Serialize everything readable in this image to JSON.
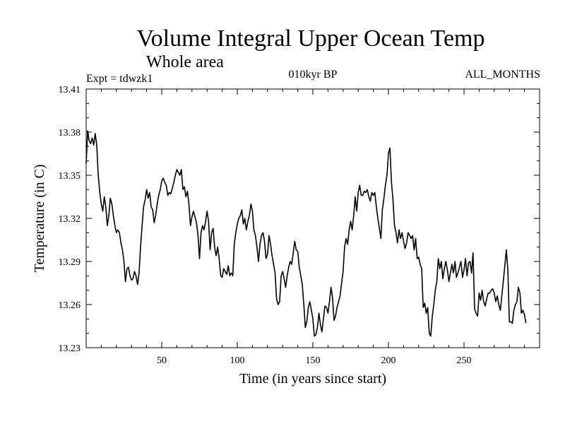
{
  "chart_data": {
    "type": "line",
    "title": "Volume Integral Upper Ocean Temp",
    "subtitle": "Whole area",
    "annotation_left": "Expt = tdwzk1",
    "annotation_center": "010kyr BP",
    "annotation_right": "ALL_MONTHS",
    "xlabel": "Time (in years since start)",
    "ylabel": "Temperature (in C)",
    "xlim": [
      0,
      300
    ],
    "ylim": [
      13.23,
      13.41
    ],
    "x_ticks": [
      50,
      100,
      150,
      200,
      250
    ],
    "x_tick_labels": [
      "50",
      "100",
      "150",
      "200",
      "250"
    ],
    "y_ticks": [
      13.23,
      13.26,
      13.29,
      13.32,
      13.35,
      13.38,
      13.41
    ],
    "y_tick_labels": [
      "13.23",
      "13.26",
      "13.29",
      "13.32",
      "13.35",
      "13.38",
      "13.41"
    ],
    "line_color": "#000000",
    "series": [
      {
        "name": "Temperature",
        "points": [
          [
            0,
            13.358
          ],
          [
            1,
            13.381
          ],
          [
            2,
            13.374
          ],
          [
            3,
            13.372
          ],
          [
            4,
            13.376
          ],
          [
            5,
            13.371
          ],
          [
            6,
            13.379
          ],
          [
            7,
            13.371
          ],
          [
            8,
            13.35
          ],
          [
            9,
            13.338
          ],
          [
            10,
            13.33
          ],
          [
            11,
            13.325
          ],
          [
            12,
            13.335
          ],
          [
            13,
            13.328
          ],
          [
            14,
            13.315
          ],
          [
            15,
            13.322
          ],
          [
            16,
            13.334
          ],
          [
            17,
            13.33
          ],
          [
            18,
            13.322
          ],
          [
            19,
            13.315
          ],
          [
            20,
            13.31
          ],
          [
            21,
            13.312
          ],
          [
            22,
            13.31
          ],
          [
            23,
            13.303
          ],
          [
            24,
            13.298
          ],
          [
            25,
            13.29
          ],
          [
            26,
            13.276
          ],
          [
            27,
            13.285
          ],
          [
            28,
            13.286
          ],
          [
            29,
            13.28
          ],
          [
            30,
            13.277
          ],
          [
            31,
            13.278
          ],
          [
            32,
            13.283
          ],
          [
            33,
            13.28
          ],
          [
            34,
            13.274
          ],
          [
            35,
            13.282
          ],
          [
            36,
            13.3
          ],
          [
            37,
            13.315
          ],
          [
            38,
            13.328
          ],
          [
            39,
            13.333
          ],
          [
            40,
            13.34
          ],
          [
            41,
            13.334
          ],
          [
            42,
            13.338
          ],
          [
            43,
            13.328
          ],
          [
            44,
            13.326
          ],
          [
            45,
            13.317
          ],
          [
            46,
            13.322
          ],
          [
            47,
            13.33
          ],
          [
            48,
            13.336
          ],
          [
            49,
            13.34
          ],
          [
            50,
            13.346
          ],
          [
            51,
            13.348
          ],
          [
            52,
            13.345
          ],
          [
            53,
            13.343
          ],
          [
            54,
            13.336
          ],
          [
            55,
            13.338
          ],
          [
            56,
            13.337
          ],
          [
            57,
            13.341
          ],
          [
            58,
            13.345
          ],
          [
            59,
            13.35
          ],
          [
            60,
            13.354
          ],
          [
            61,
            13.352
          ],
          [
            62,
            13.35
          ],
          [
            63,
            13.354
          ],
          [
            64,
            13.34
          ],
          [
            65,
            13.342
          ],
          [
            66,
            13.335
          ],
          [
            67,
            13.339
          ],
          [
            68,
            13.33
          ],
          [
            69,
            13.315
          ],
          [
            70,
            13.321
          ],
          [
            71,
            13.325
          ],
          [
            72,
            13.321
          ],
          [
            73,
            13.317
          ],
          [
            74,
            13.308
          ],
          [
            75,
            13.292
          ],
          [
            76,
            13.31
          ],
          [
            77,
            13.315
          ],
          [
            78,
            13.312
          ],
          [
            79,
            13.318
          ],
          [
            80,
            13.325
          ],
          [
            81,
            13.318
          ],
          [
            82,
            13.298
          ],
          [
            83,
            13.31
          ],
          [
            84,
            13.313
          ],
          [
            85,
            13.3
          ],
          [
            86,
            13.294
          ],
          [
            87,
            13.3
          ],
          [
            88,
            13.292
          ],
          [
            89,
            13.28
          ],
          [
            90,
            13.279
          ],
          [
            91,
            13.285
          ],
          [
            92,
            13.283
          ],
          [
            93,
            13.281
          ],
          [
            94,
            13.287
          ],
          [
            95,
            13.28
          ],
          [
            96,
            13.282
          ],
          [
            97,
            13.28
          ],
          [
            98,
            13.302
          ],
          [
            99,
            13.31
          ],
          [
            100,
            13.316
          ],
          [
            101,
            13.32
          ],
          [
            102,
            13.322
          ],
          [
            103,
            13.326
          ],
          [
            104,
            13.316
          ],
          [
            105,
            13.32
          ],
          [
            106,
            13.312
          ],
          [
            107,
            13.318
          ],
          [
            108,
            13.322
          ],
          [
            109,
            13.33
          ],
          [
            110,
            13.325
          ],
          [
            111,
            13.312
          ],
          [
            112,
            13.308
          ],
          [
            113,
            13.3
          ],
          [
            114,
            13.29
          ],
          [
            115,
            13.302
          ],
          [
            116,
            13.308
          ],
          [
            117,
            13.31
          ],
          [
            118,
            13.304
          ],
          [
            119,
            13.292
          ],
          [
            120,
            13.295
          ],
          [
            121,
            13.308
          ],
          [
            122,
            13.302
          ],
          [
            123,
            13.294
          ],
          [
            124,
            13.288
          ],
          [
            125,
            13.282
          ],
          [
            126,
            13.264
          ],
          [
            127,
            13.26
          ],
          [
            128,
            13.262
          ],
          [
            129,
            13.28
          ],
          [
            130,
            13.283
          ],
          [
            131,
            13.278
          ],
          [
            132,
            13.272
          ],
          [
            133,
            13.28
          ],
          [
            134,
            13.286
          ],
          [
            135,
            13.29
          ],
          [
            136,
            13.288
          ],
          [
            137,
            13.296
          ],
          [
            138,
            13.304
          ],
          [
            139,
            13.298
          ],
          [
            140,
            13.297
          ],
          [
            141,
            13.286
          ],
          [
            142,
            13.28
          ],
          [
            143,
            13.274
          ],
          [
            144,
            13.26
          ],
          [
            145,
            13.244
          ],
          [
            146,
            13.248
          ],
          [
            147,
            13.258
          ],
          [
            148,
            13.262
          ],
          [
            149,
            13.256
          ],
          [
            150,
            13.25
          ],
          [
            151,
            13.238
          ],
          [
            152,
            13.239
          ],
          [
            153,
            13.244
          ],
          [
            154,
            13.254
          ],
          [
            155,
            13.246
          ],
          [
            156,
            13.241
          ],
          [
            157,
            13.25
          ],
          [
            158,
            13.259
          ],
          [
            159,
            13.258
          ],
          [
            160,
            13.254
          ],
          [
            161,
            13.262
          ],
          [
            162,
            13.272
          ],
          [
            163,
            13.265
          ],
          [
            164,
            13.249
          ],
          [
            165,
            13.252
          ],
          [
            166,
            13.258
          ],
          [
            167,
            13.262
          ],
          [
            168,
            13.266
          ],
          [
            169,
            13.275
          ],
          [
            170,
            13.283
          ],
          [
            171,
            13.3
          ],
          [
            172,
            13.306
          ],
          [
            173,
            13.302
          ],
          [
            174,
            13.312
          ],
          [
            175,
            13.318
          ],
          [
            176,
            13.312
          ],
          [
            177,
            13.322
          ],
          [
            178,
            13.335
          ],
          [
            179,
            13.325
          ],
          [
            180,
            13.338
          ],
          [
            181,
            13.343
          ],
          [
            182,
            13.336
          ],
          [
            183,
            13.336
          ],
          [
            184,
            13.339
          ],
          [
            185,
            13.338
          ],
          [
            186,
            13.34
          ],
          [
            187,
            13.335
          ],
          [
            188,
            13.332
          ],
          [
            189,
            13.338
          ],
          [
            190,
            13.336
          ],
          [
            191,
            13.338
          ],
          [
            192,
            13.328
          ],
          [
            193,
            13.32
          ],
          [
            194,
            13.313
          ],
          [
            195,
            13.306
          ],
          [
            196,
            13.326
          ],
          [
            197,
            13.334
          ],
          [
            198,
            13.343
          ],
          [
            199,
            13.35
          ],
          [
            200,
            13.365
          ],
          [
            201,
            13.369
          ],
          [
            202,
            13.345
          ],
          [
            203,
            13.333
          ],
          [
            204,
            13.315
          ],
          [
            205,
            13.31
          ],
          [
            206,
            13.303
          ],
          [
            207,
            13.312
          ],
          [
            208,
            13.306
          ],
          [
            209,
            13.31
          ],
          [
            210,
            13.304
          ],
          [
            211,
            13.299
          ],
          [
            212,
            13.303
          ],
          [
            213,
            13.31
          ],
          [
            214,
            13.308
          ],
          [
            215,
            13.306
          ],
          [
            216,
            13.308
          ],
          [
            217,
            13.298
          ],
          [
            218,
            13.306
          ],
          [
            219,
            13.292
          ],
          [
            220,
            13.293
          ],
          [
            221,
            13.288
          ],
          [
            222,
            13.285
          ],
          [
            223,
            13.258
          ],
          [
            224,
            13.261
          ],
          [
            225,
            13.254
          ],
          [
            226,
            13.258
          ],
          [
            227,
            13.24
          ],
          [
            228,
            13.238
          ],
          [
            229,
            13.252
          ],
          [
            230,
            13.26
          ],
          [
            231,
            13.27
          ],
          [
            232,
            13.276
          ],
          [
            233,
            13.292
          ],
          [
            234,
            13.285
          ],
          [
            235,
            13.29
          ],
          [
            236,
            13.278
          ],
          [
            237,
            13.285
          ],
          [
            238,
            13.29
          ],
          [
            239,
            13.284
          ],
          [
            240,
            13.276
          ],
          [
            241,
            13.282
          ],
          [
            242,
            13.288
          ],
          [
            243,
            13.282
          ],
          [
            244,
            13.29
          ],
          [
            245,
            13.279
          ],
          [
            246,
            13.282
          ],
          [
            247,
            13.286
          ],
          [
            248,
            13.29
          ],
          [
            249,
            13.279
          ],
          [
            250,
            13.284
          ],
          [
            251,
            13.292
          ],
          [
            252,
            13.28
          ],
          [
            253,
            13.289
          ],
          [
            254,
            13.29
          ],
          [
            255,
            13.282
          ],
          [
            256,
            13.296
          ],
          [
            257,
            13.257
          ],
          [
            258,
            13.254
          ],
          [
            259,
            13.252
          ],
          [
            260,
            13.268
          ],
          [
            261,
            13.263
          ],
          [
            262,
            13.27
          ],
          [
            263,
            13.262
          ],
          [
            264,
            13.259
          ],
          [
            265,
            13.264
          ],
          [
            266,
            13.268
          ],
          [
            267,
            13.268
          ],
          [
            268,
            13.27
          ],
          [
            269,
            13.271
          ],
          [
            270,
            13.268
          ],
          [
            271,
            13.262
          ],
          [
            272,
            13.266
          ],
          [
            273,
            13.26
          ],
          [
            274,
            13.256
          ],
          [
            275,
            13.266
          ],
          [
            276,
            13.276
          ],
          [
            277,
            13.287
          ],
          [
            278,
            13.298
          ],
          [
            279,
            13.284
          ],
          [
            280,
            13.248
          ],
          [
            281,
            13.248
          ],
          [
            282,
            13.247
          ],
          [
            283,
            13.256
          ],
          [
            284,
            13.26
          ],
          [
            285,
            13.262
          ],
          [
            286,
            13.272
          ],
          [
            287,
            13.268
          ],
          [
            288,
            13.254
          ],
          [
            289,
            13.256
          ],
          [
            290,
            13.253
          ],
          [
            291,
            13.247
          ]
        ]
      }
    ]
  }
}
